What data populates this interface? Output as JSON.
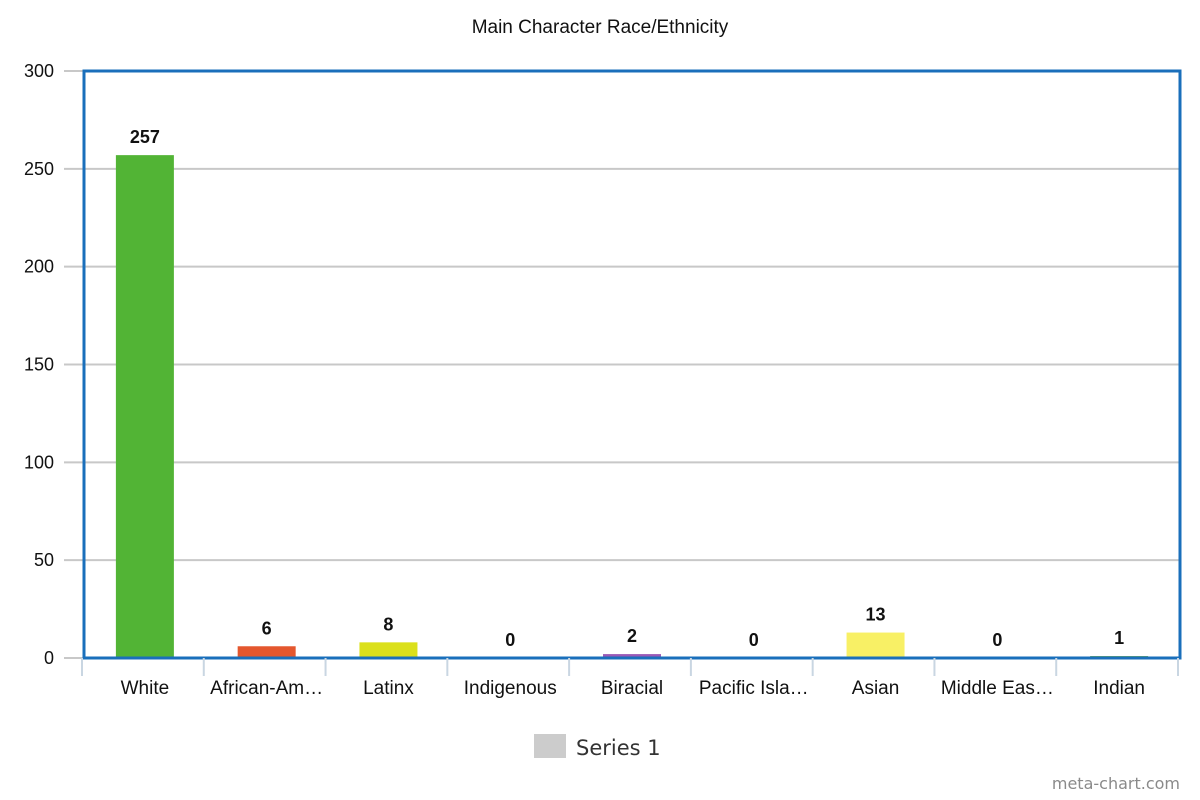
{
  "chart_data": {
    "type": "bar",
    "title": "Main Character Race/Ethnicity",
    "xlabel": "",
    "ylabel": "",
    "categories": [
      "White",
      "African-Am…",
      "Latinx",
      "Indigenous",
      "Biracial",
      "Pacific Isla…",
      "Asian",
      "Middle Eas…",
      "Indian"
    ],
    "series": [
      {
        "name": "Series 1",
        "values": [
          257,
          6,
          8,
          0,
          2,
          0,
          13,
          0,
          1
        ]
      }
    ],
    "bar_colors": [
      "#52b435",
      "#e4572e",
      "#dbe01b",
      "#7fb3e6",
      "#9b59b6",
      "#3fb8c4",
      "#f8f065",
      "#e08a3c",
      "#6aa84f"
    ],
    "ylim": [
      0,
      300
    ],
    "yticks": [
      0,
      50,
      100,
      150,
      200,
      250,
      300
    ],
    "grid": true,
    "legend_position": "bottom-center",
    "legend_swatch_color": "#cccccc",
    "plot_border_color": "#1a6fbb",
    "gridline_color": "#c8c8c8"
  },
  "watermark": "meta-chart.com"
}
